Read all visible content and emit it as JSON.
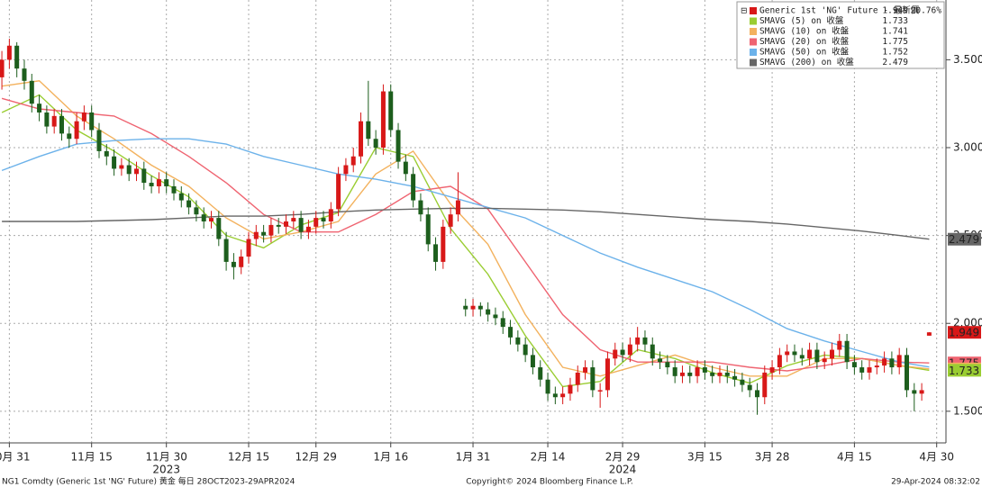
{
  "chart_data": {
    "type": "candlestick",
    "xlim": [
      -0.25,
      126
    ],
    "ylim": [
      1.32,
      3.84
    ],
    "yticks": [
      {
        "value": 3.5,
        "label": "3.500"
      },
      {
        "value": 3.0,
        "label": "3.000"
      },
      {
        "value": 2.5,
        "label": "2.500"
      },
      {
        "value": 2.0,
        "label": "2.000"
      },
      {
        "value": 1.5,
        "label": "1.500"
      }
    ],
    "xticks": [
      {
        "value": 1,
        "label": "10月 31"
      },
      {
        "value": 12,
        "label": "11月 15"
      },
      {
        "value": 22,
        "label": "11月 30"
      },
      {
        "value": 33,
        "label": "12月 15"
      },
      {
        "value": 42,
        "label": "12月 29"
      },
      {
        "value": 52,
        "label": "1月 16"
      },
      {
        "value": 63,
        "label": "1月 31"
      },
      {
        "value": 73,
        "label": "2月 14"
      },
      {
        "value": 83,
        "label": "2月 29"
      },
      {
        "value": 94,
        "label": "3月 15"
      },
      {
        "value": 103,
        "label": "3月 28"
      },
      {
        "value": 114,
        "label": "4月 15"
      },
      {
        "value": 125,
        "label": "4月 30"
      }
    ],
    "grid": true,
    "annotations": [
      {
        "text": "2023",
        "x": 22
      },
      {
        "text": "2024",
        "x": 83
      }
    ],
    "candles": {
      "name": "Generic 1st 'NG' Future - 最新價",
      "up_color": "#d81818",
      "down_color": "#1d5e1d",
      "change": {
        "value": 20.76,
        "label": "20.76%"
      },
      "open": [
        3.4,
        3.5,
        3.58,
        3.45,
        3.38,
        3.25,
        3.2,
        3.12,
        3.18,
        3.08,
        3.05,
        3.15,
        3.2,
        3.1,
        2.98,
        2.95,
        2.88,
        2.9,
        2.85,
        2.88,
        2.8,
        2.78,
        2.82,
        2.78,
        2.74,
        2.7,
        2.66,
        2.62,
        2.58,
        2.6,
        2.48,
        2.35,
        2.32,
        2.38,
        2.48,
        2.52,
        2.5,
        2.56,
        2.55,
        2.58,
        2.6,
        2.52,
        2.55,
        2.6,
        2.58,
        2.65,
        2.85,
        2.9,
        2.95,
        3.15,
        3.05,
        3.0,
        3.32,
        3.1,
        2.92,
        2.85,
        2.7,
        2.62,
        2.45,
        2.35,
        2.55,
        2.62,
        2.1,
        2.08,
        2.1,
        2.08,
        2.05,
        2.03,
        1.98,
        1.92,
        1.88,
        1.82,
        1.75,
        1.68,
        1.6,
        1.58,
        1.6,
        1.65,
        1.72,
        1.75,
        1.62,
        1.62,
        1.8,
        1.85,
        1.82,
        1.88,
        1.92,
        1.88,
        1.8,
        1.78,
        1.75,
        1.7,
        1.72,
        1.7,
        1.75,
        1.72,
        1.7,
        1.72,
        1.7,
        1.68,
        1.65,
        1.62,
        1.58,
        1.72,
        1.75,
        1.82,
        1.84,
        1.82,
        1.8,
        1.85,
        1.78,
        1.8,
        1.85,
        1.9,
        1.78,
        1.75,
        1.72,
        1.75,
        1.76,
        1.8,
        1.75,
        1.82,
        1.62,
        1.6,
        1.93
      ],
      "high": [
        3.55,
        3.62,
        3.6,
        3.5,
        3.42,
        3.3,
        3.24,
        3.22,
        3.22,
        3.12,
        3.2,
        3.24,
        3.24,
        3.14,
        3.02,
        2.99,
        2.94,
        2.94,
        2.92,
        2.92,
        2.84,
        2.86,
        2.86,
        2.82,
        2.78,
        2.74,
        2.7,
        2.66,
        2.64,
        2.64,
        2.52,
        2.4,
        2.42,
        2.52,
        2.56,
        2.56,
        2.6,
        2.6,
        2.62,
        2.64,
        2.64,
        2.59,
        2.64,
        2.64,
        2.69,
        2.89,
        2.94,
        3.0,
        3.2,
        3.38,
        3.1,
        3.36,
        3.36,
        3.14,
        2.96,
        2.89,
        2.74,
        2.66,
        2.49,
        2.59,
        2.66,
        2.86,
        2.14,
        2.14,
        2.12,
        2.12,
        2.09,
        2.07,
        2.02,
        1.96,
        1.92,
        1.86,
        1.79,
        1.72,
        1.64,
        1.64,
        1.69,
        1.76,
        1.79,
        1.79,
        1.66,
        1.84,
        1.89,
        1.89,
        1.92,
        1.98,
        1.96,
        1.92,
        1.84,
        1.82,
        1.79,
        1.76,
        1.76,
        1.79,
        1.79,
        1.76,
        1.76,
        1.76,
        1.74,
        1.72,
        1.69,
        1.66,
        1.76,
        1.79,
        1.86,
        1.88,
        1.88,
        1.86,
        1.89,
        1.89,
        1.84,
        1.89,
        1.94,
        1.94,
        1.82,
        1.79,
        1.79,
        1.8,
        1.84,
        1.84,
        1.86,
        1.86,
        1.66,
        1.66,
        1.95
      ],
      "low": [
        3.33,
        3.45,
        3.4,
        3.33,
        3.2,
        3.15,
        3.08,
        3.08,
        3.04,
        3.0,
        3.02,
        3.1,
        3.06,
        2.94,
        2.9,
        2.84,
        2.84,
        2.81,
        2.81,
        2.76,
        2.74,
        2.74,
        2.74,
        2.7,
        2.66,
        2.62,
        2.58,
        2.54,
        2.54,
        2.44,
        2.3,
        2.25,
        2.28,
        2.34,
        2.44,
        2.46,
        2.46,
        2.51,
        2.51,
        2.54,
        2.48,
        2.48,
        2.51,
        2.54,
        2.54,
        2.61,
        2.81,
        2.86,
        2.91,
        3.01,
        2.96,
        2.96,
        3.06,
        2.88,
        2.81,
        2.66,
        2.58,
        2.41,
        2.3,
        2.31,
        2.51,
        2.58,
        2.04,
        2.04,
        2.04,
        2.01,
        1.99,
        1.94,
        1.88,
        1.84,
        1.78,
        1.71,
        1.64,
        1.56,
        1.54,
        1.54,
        1.56,
        1.61,
        1.68,
        1.58,
        1.52,
        1.58,
        1.76,
        1.78,
        1.78,
        1.84,
        1.84,
        1.76,
        1.74,
        1.71,
        1.66,
        1.66,
        1.66,
        1.66,
        1.68,
        1.66,
        1.66,
        1.66,
        1.64,
        1.61,
        1.58,
        1.48,
        1.54,
        1.68,
        1.71,
        1.78,
        1.78,
        1.76,
        1.76,
        1.74,
        1.74,
        1.76,
        1.81,
        1.74,
        1.71,
        1.68,
        1.68,
        1.71,
        1.72,
        1.71,
        1.71,
        1.58,
        1.5,
        1.56,
        1.93
      ],
      "close": [
        3.5,
        3.58,
        3.45,
        3.38,
        3.25,
        3.2,
        3.12,
        3.18,
        3.08,
        3.05,
        3.15,
        3.2,
        3.1,
        2.98,
        2.95,
        2.88,
        2.9,
        2.85,
        2.88,
        2.8,
        2.78,
        2.82,
        2.78,
        2.74,
        2.7,
        2.66,
        2.62,
        2.58,
        2.6,
        2.48,
        2.35,
        2.32,
        2.38,
        2.48,
        2.52,
        2.5,
        2.56,
        2.55,
        2.58,
        2.6,
        2.52,
        2.55,
        2.6,
        2.58,
        2.65,
        2.85,
        2.9,
        2.95,
        3.15,
        3.05,
        3.0,
        3.32,
        3.1,
        2.92,
        2.85,
        2.7,
        2.62,
        2.45,
        2.35,
        2.55,
        2.62,
        2.7,
        2.08,
        2.1,
        2.08,
        2.05,
        2.03,
        1.98,
        1.92,
        1.88,
        1.82,
        1.75,
        1.68,
        1.6,
        1.58,
        1.6,
        1.65,
        1.72,
        1.75,
        1.62,
        1.62,
        1.8,
        1.85,
        1.82,
        1.88,
        1.92,
        1.88,
        1.8,
        1.78,
        1.75,
        1.7,
        1.72,
        1.7,
        1.75,
        1.72,
        1.7,
        1.72,
        1.7,
        1.68,
        1.65,
        1.62,
        1.58,
        1.72,
        1.75,
        1.82,
        1.84,
        1.82,
        1.8,
        1.85,
        1.78,
        1.8,
        1.85,
        1.9,
        1.78,
        1.75,
        1.72,
        1.75,
        1.76,
        1.8,
        1.75,
        1.82,
        1.62,
        1.6,
        1.62,
        1.949
      ]
    },
    "ma_x": [
      0,
      5,
      10,
      15,
      20,
      25,
      30,
      35,
      40,
      45,
      50,
      55,
      60,
      65,
      70,
      75,
      80,
      85,
      90,
      95,
      100,
      105,
      110,
      115,
      120,
      124
    ],
    "series": [
      {
        "name": "SMAVG (5)  on 收盤",
        "color": "#9acd32",
        "values": [
          3.2,
          3.3,
          3.1,
          2.98,
          2.84,
          2.72,
          2.5,
          2.43,
          2.56,
          2.63,
          3.0,
          2.95,
          2.54,
          2.28,
          1.93,
          1.64,
          1.67,
          1.85,
          1.8,
          1.72,
          1.66,
          1.76,
          1.82,
          1.8,
          1.76,
          1.733
        ]
      },
      {
        "name": "SMAVG (10)  on 收盤",
        "color": "#f3b25e",
        "values": [
          3.35,
          3.38,
          3.18,
          3.05,
          2.9,
          2.78,
          2.6,
          2.48,
          2.52,
          2.58,
          2.85,
          2.98,
          2.68,
          2.45,
          2.05,
          1.75,
          1.7,
          1.76,
          1.82,
          1.75,
          1.7,
          1.7,
          1.8,
          1.8,
          1.76,
          1.741
        ]
      },
      {
        "name": "SMAVG (20)  on 收盤",
        "color": "#ef6471",
        "values": [
          3.28,
          3.22,
          3.2,
          3.18,
          3.08,
          2.95,
          2.8,
          2.62,
          2.52,
          2.52,
          2.62,
          2.75,
          2.78,
          2.65,
          2.35,
          2.05,
          1.85,
          1.78,
          1.78,
          1.78,
          1.75,
          1.73,
          1.76,
          1.8,
          1.78,
          1.775
        ]
      },
      {
        "name": "SMAVG (50)  on 收盤",
        "color": "#6cb2ea",
        "values": [
          2.87,
          2.95,
          3.02,
          3.04,
          3.05,
          3.05,
          3.02,
          2.95,
          2.9,
          2.85,
          2.82,
          2.78,
          2.72,
          2.66,
          2.6,
          2.5,
          2.4,
          2.32,
          2.25,
          2.18,
          2.08,
          1.97,
          1.9,
          1.84,
          1.78,
          1.752
        ]
      },
      {
        "name": "SMAVG (200)  on 收盤",
        "color": "#666666",
        "values": [
          2.58,
          2.58,
          2.58,
          2.585,
          2.59,
          2.6,
          2.61,
          2.61,
          2.62,
          2.635,
          2.645,
          2.65,
          2.655,
          2.655,
          2.65,
          2.645,
          2.635,
          2.62,
          2.605,
          2.59,
          2.58,
          2.565,
          2.545,
          2.525,
          2.5,
          2.479
        ]
      }
    ],
    "footer": {
      "left": "NG1 Comdty (Generic 1st 'NG' Future) 黄金  每日 28OCT2023-29APR2024",
      "center": "Copyright© 2024 Bloomberg Finance L.P.",
      "right": "29-Apr-2024 08:32:02"
    }
  }
}
